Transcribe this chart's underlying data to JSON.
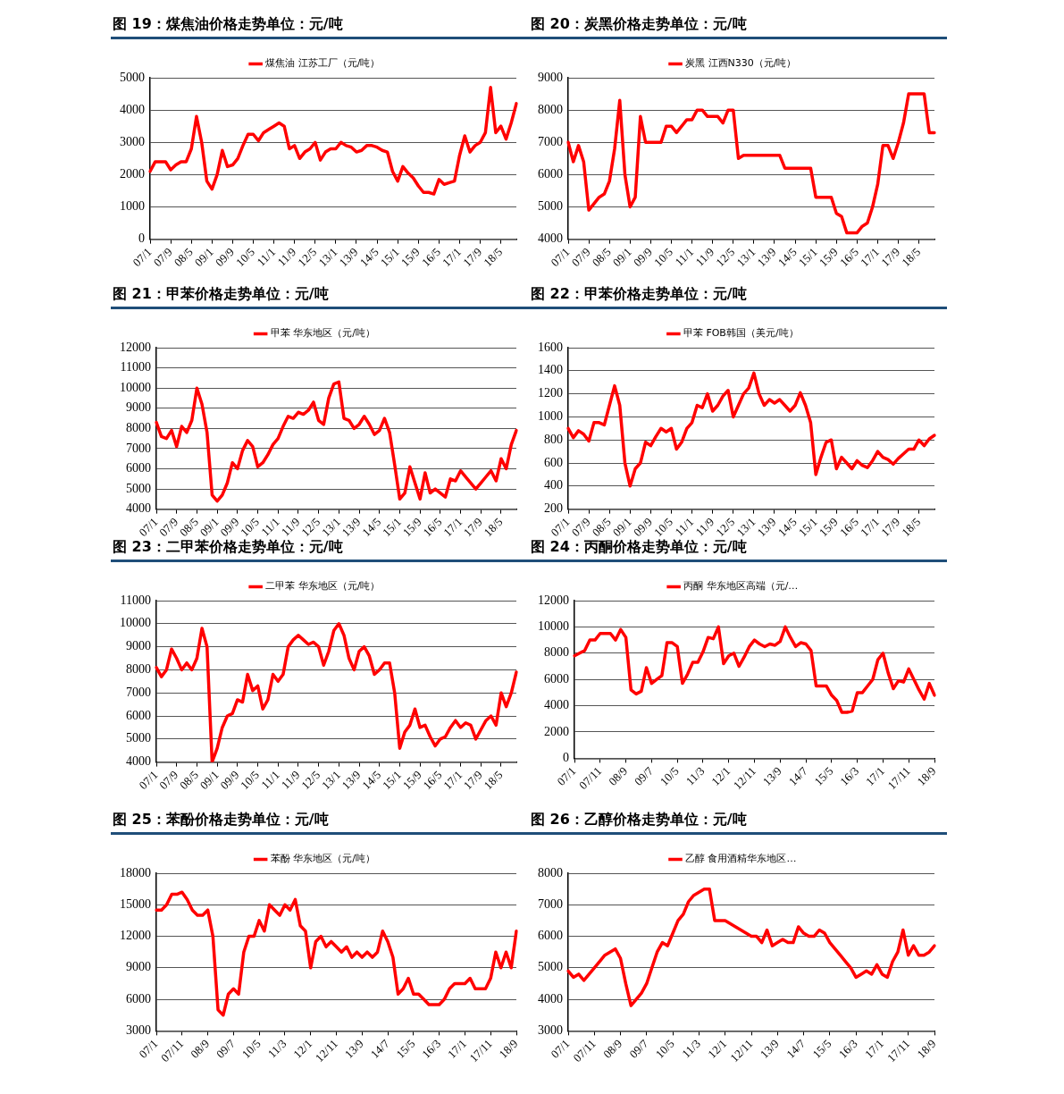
{
  "chart_data": [
    {
      "type": "line",
      "title": "图 19：煤焦油价格走势单位：元/吨",
      "legend": "top",
      "grid": "y",
      "marker": "none",
      "ylim": [
        0,
        5000
      ],
      "yticks": [
        0,
        1000,
        2000,
        3000,
        4000,
        5000
      ],
      "categories": [
        "07/1",
        null,
        null,
        null,
        "07/9",
        null,
        null,
        null,
        "08/5",
        null,
        null,
        null,
        "09/1",
        null,
        null,
        null,
        "09/9",
        null,
        null,
        null,
        "10/5",
        null,
        null,
        null,
        "11/1",
        null,
        null,
        null,
        "11/9",
        null,
        null,
        null,
        "12/5",
        null,
        null,
        null,
        "13/1",
        null,
        null,
        null,
        "13/9",
        null,
        null,
        null,
        "14/5",
        null,
        null,
        null,
        "15/1",
        null,
        null,
        null,
        "15/9",
        null,
        null,
        null,
        "16/5",
        null,
        null,
        null,
        "17/1",
        null,
        null,
        null,
        "17/9",
        null,
        null,
        null,
        "18/5",
        null,
        null,
        null
      ],
      "series": [
        {
          "name": "煤焦油 江苏工厂（元/吨）",
          "color": "#ff0000",
          "values": [
            2100,
            2400,
            2400,
            2400,
            2150,
            2300,
            2400,
            2400,
            2800,
            3800,
            3000,
            1800,
            1550,
            2000,
            2750,
            2250,
            2300,
            2500,
            2900,
            3250,
            3250,
            3050,
            3300,
            3400,
            3500,
            3600,
            3500,
            2800,
            2900,
            2500,
            2700,
            2800,
            3000,
            2450,
            2700,
            2800,
            2800,
            3000,
            2900,
            2850,
            2700,
            2750,
            2900,
            2900,
            2850,
            2750,
            2700,
            2100,
            1800,
            2250,
            2050,
            1900,
            1650,
            1450,
            1450,
            1400,
            1850,
            1700,
            1750,
            1800,
            2600,
            3200,
            2700,
            2900,
            3000,
            3300,
            4700,
            3300,
            3500,
            3100,
            3600,
            4200
          ]
        }
      ]
    },
    {
      "type": "line",
      "title": "图 20：炭黑价格走势单位：元/吨",
      "legend": "top",
      "grid": "y",
      "marker": "none",
      "ylim": [
        4000,
        9000
      ],
      "yticks": [
        4000,
        5000,
        6000,
        7000,
        8000,
        9000
      ],
      "categories": [
        "07/1",
        null,
        null,
        null,
        "07/9",
        null,
        null,
        null,
        "08/5",
        null,
        null,
        null,
        "09/1",
        null,
        null,
        null,
        "09/9",
        null,
        null,
        null,
        "10/5",
        null,
        null,
        null,
        "11/1",
        null,
        null,
        null,
        "11/9",
        null,
        null,
        null,
        "12/5",
        null,
        null,
        null,
        "13/1",
        null,
        null,
        null,
        "13/9",
        null,
        null,
        null,
        "14/5",
        null,
        null,
        null,
        "15/1",
        null,
        null,
        null,
        "15/9",
        null,
        null,
        null,
        "16/5",
        null,
        null,
        null,
        "17/1",
        null,
        null,
        null,
        "17/9",
        null,
        null,
        null,
        "18/5",
        null,
        null,
        null
      ],
      "series": [
        {
          "name": "炭黑 江西N330（元/吨）",
          "color": "#ff0000",
          "values": [
            7000,
            6400,
            6900,
            6400,
            4900,
            5100,
            5300,
            5400,
            5800,
            6800,
            8300,
            6000,
            5000,
            5300,
            7800,
            7000,
            7000,
            7000,
            7000,
            7500,
            7500,
            7300,
            7500,
            7700,
            7700,
            8000,
            8000,
            7800,
            7800,
            7800,
            7600,
            8000,
            8000,
            6500,
            6600,
            6600,
            6600,
            6600,
            6600,
            6600,
            6600,
            6600,
            6200,
            6200,
            6200,
            6200,
            6200,
            6200,
            5300,
            5300,
            5300,
            5300,
            4800,
            4700,
            4200,
            4200,
            4200,
            4400,
            4500,
            5000,
            5700,
            6900,
            6900,
            6500,
            7000,
            7600,
            8500,
            8500,
            8500,
            8500,
            7300,
            7300
          ]
        }
      ]
    },
    {
      "type": "line",
      "title": "图 21：甲苯价格走势单位：元/吨",
      "legend": "top",
      "grid": "y",
      "marker": "none",
      "ylim": [
        4000,
        12000
      ],
      "yticks": [
        4000,
        5000,
        6000,
        7000,
        8000,
        9000,
        10000,
        11000,
        12000
      ],
      "categories": [
        "07/1",
        null,
        null,
        null,
        "07/9",
        null,
        null,
        null,
        "08/5",
        null,
        null,
        null,
        "09/1",
        null,
        null,
        null,
        "09/9",
        null,
        null,
        null,
        "10/5",
        null,
        null,
        null,
        "11/1",
        null,
        null,
        null,
        "11/9",
        null,
        null,
        null,
        "12/5",
        null,
        null,
        null,
        "13/1",
        null,
        null,
        null,
        "13/9",
        null,
        null,
        null,
        "14/5",
        null,
        null,
        null,
        "15/1",
        null,
        null,
        null,
        "15/9",
        null,
        null,
        null,
        "16/5",
        null,
        null,
        null,
        "17/1",
        null,
        null,
        null,
        "17/9",
        null,
        null,
        null,
        "18/5",
        null,
        null,
        null
      ],
      "series": [
        {
          "name": "甲苯 华东地区（元/吨）",
          "color": "#ff0000",
          "values": [
            8300,
            7600,
            7500,
            7900,
            7100,
            8100,
            7800,
            8400,
            10000,
            9200,
            7800,
            4700,
            4400,
            4700,
            5300,
            6300,
            6000,
            6900,
            7400,
            7100,
            6100,
            6300,
            6700,
            7200,
            7500,
            8100,
            8600,
            8500,
            8800,
            8700,
            8900,
            9300,
            8400,
            8200,
            9500,
            10200,
            10300,
            8500,
            8400,
            8000,
            8200,
            8600,
            8200,
            7700,
            7900,
            8500,
            7800,
            6200,
            4500,
            4800,
            6100,
            5300,
            4500,
            5800,
            4800,
            5000,
            4800,
            4600,
            5500,
            5400,
            5900,
            5600,
            5300,
            5000,
            5300,
            5600,
            5900,
            5400,
            6500,
            6000,
            7200,
            7900
          ]
        }
      ]
    },
    {
      "type": "line",
      "title": "图 22：甲苯价格走势单位：元/吨",
      "legend": "top",
      "grid": "y",
      "marker": "none",
      "ylim": [
        200,
        1600
      ],
      "yticks": [
        200,
        400,
        600,
        800,
        1000,
        1200,
        1400,
        1600
      ],
      "categories": [
        "07/1",
        null,
        null,
        null,
        "07/9",
        null,
        null,
        null,
        "08/5",
        null,
        null,
        null,
        "09/1",
        null,
        null,
        null,
        "09/9",
        null,
        null,
        null,
        "10/5",
        null,
        null,
        null,
        "11/1",
        null,
        null,
        null,
        "11/9",
        null,
        null,
        null,
        "12/5",
        null,
        null,
        null,
        "13/1",
        null,
        null,
        null,
        "13/9",
        null,
        null,
        null,
        "14/5",
        null,
        null,
        null,
        "15/1",
        null,
        null,
        null,
        "15/9",
        null,
        null,
        null,
        "16/5",
        null,
        null,
        null,
        "17/1",
        null,
        null,
        null,
        "17/9",
        null,
        null,
        null,
        "18/5",
        null,
        null,
        null
      ],
      "series": [
        {
          "name": "甲苯 FOB韩国（美元/吨）",
          "color": "#ff0000",
          "values": [
            900,
            820,
            880,
            850,
            790,
            950,
            950,
            930,
            1100,
            1270,
            1100,
            600,
            400,
            550,
            600,
            780,
            750,
            830,
            900,
            870,
            900,
            720,
            780,
            900,
            950,
            1100,
            1080,
            1200,
            1050,
            1100,
            1180,
            1230,
            1000,
            1100,
            1200,
            1250,
            1380,
            1200,
            1100,
            1150,
            1120,
            1150,
            1100,
            1050,
            1100,
            1210,
            1100,
            950,
            500,
            650,
            780,
            800,
            550,
            650,
            600,
            550,
            620,
            580,
            560,
            620,
            700,
            650,
            630,
            590,
            640,
            680,
            720,
            720,
            800,
            750,
            810,
            840
          ]
        }
      ]
    },
    {
      "type": "line",
      "title": "图 23：二甲苯价格走势单位：元/吨",
      "legend": "top",
      "grid": "y",
      "marker": "none",
      "ylim": [
        4000,
        11000
      ],
      "yticks": [
        4000,
        5000,
        6000,
        7000,
        8000,
        9000,
        10000,
        11000
      ],
      "categories": [
        "07/1",
        null,
        null,
        null,
        "07/9",
        null,
        null,
        null,
        "08/5",
        null,
        null,
        null,
        "09/1",
        null,
        null,
        null,
        "09/9",
        null,
        null,
        null,
        "10/5",
        null,
        null,
        null,
        "11/1",
        null,
        null,
        null,
        "11/9",
        null,
        null,
        null,
        "12/5",
        null,
        null,
        null,
        "13/1",
        null,
        null,
        null,
        "13/9",
        null,
        null,
        null,
        "14/5",
        null,
        null,
        null,
        "15/1",
        null,
        null,
        null,
        "15/9",
        null,
        null,
        null,
        "16/5",
        null,
        null,
        null,
        "17/1",
        null,
        null,
        null,
        "17/9",
        null,
        null,
        null,
        "18/5",
        null,
        null,
        null
      ],
      "series": [
        {
          "name": "二甲苯 华东地区（元/吨）",
          "color": "#ff0000",
          "values": [
            8100,
            7700,
            8000,
            8900,
            8500,
            8000,
            8300,
            8000,
            8500,
            9800,
            9000,
            4000,
            4600,
            5500,
            6000,
            6100,
            6700,
            6600,
            7800,
            7100,
            7300,
            6300,
            6700,
            7800,
            7500,
            7800,
            9000,
            9300,
            9500,
            9300,
            9100,
            9200,
            9000,
            8200,
            8800,
            9700,
            10000,
            9500,
            8500,
            8000,
            8800,
            9000,
            8600,
            7800,
            8000,
            8300,
            8300,
            7000,
            4600,
            5300,
            5600,
            6300,
            5500,
            5600,
            5100,
            4700,
            5000,
            5100,
            5500,
            5800,
            5500,
            5700,
            5600,
            5000,
            5400,
            5800,
            6000,
            5600,
            7000,
            6400,
            7000,
            7900
          ]
        }
      ]
    },
    {
      "type": "line",
      "title": "图 24：丙酮价格走势单位：元/吨",
      "legend": "top",
      "grid": "y",
      "marker": "none",
      "ylim": [
        0,
        12000
      ],
      "yticks": [
        0,
        2000,
        4000,
        6000,
        8000,
        10000,
        12000
      ],
      "categories": [
        "07/1",
        null,
        null,
        null,
        null,
        "07/11",
        null,
        null,
        null,
        null,
        "08/9",
        null,
        null,
        null,
        null,
        "09/7",
        null,
        null,
        null,
        null,
        "10/5",
        null,
        null,
        null,
        null,
        "11/3",
        null,
        null,
        null,
        null,
        "12/1",
        null,
        null,
        null,
        null,
        "12/11",
        null,
        null,
        null,
        null,
        "13/9",
        null,
        null,
        null,
        null,
        "14/7",
        null,
        null,
        null,
        null,
        "15/5",
        null,
        null,
        null,
        null,
        "16/3",
        null,
        null,
        null,
        null,
        "17/1",
        null,
        null,
        null,
        null,
        "17/11",
        null,
        null,
        null,
        null,
        "18/9"
      ],
      "series": [
        {
          "name": "丙酮 华东地区高端（元/…",
          "color": "#ff0000",
          "values": [
            7800,
            8000,
            8200,
            9000,
            9000,
            9500,
            9500,
            9500,
            9000,
            9800,
            9200,
            5200,
            4900,
            5100,
            6900,
            5700,
            6000,
            6300,
            8800,
            8800,
            8500,
            5700,
            6400,
            7300,
            7300,
            8100,
            9200,
            9100,
            10000,
            7200,
            7800,
            8000,
            7000,
            7700,
            8500,
            9000,
            8700,
            8500,
            8700,
            8600,
            8900,
            10000,
            9200,
            8500,
            8800,
            8700,
            8200,
            5500,
            5500,
            5500,
            4800,
            4400,
            3500,
            3500,
            3600,
            5000,
            5000,
            5500,
            6000,
            7500,
            8000,
            6500,
            5300,
            5900,
            5800,
            6800,
            6000,
            5200,
            4500,
            5700,
            4800
          ]
        }
      ]
    },
    {
      "type": "line",
      "title": "图 25：苯酚价格走势单位：元/吨",
      "legend": "top",
      "grid": "y",
      "marker": "none",
      "ylim": [
        3000,
        18000
      ],
      "yticks": [
        3000,
        6000,
        9000,
        12000,
        15000,
        18000
      ],
      "categories": [
        "07/1",
        null,
        null,
        null,
        null,
        "07/11",
        null,
        null,
        null,
        null,
        "08/9",
        null,
        null,
        null,
        null,
        "09/7",
        null,
        null,
        null,
        null,
        "10/5",
        null,
        null,
        null,
        null,
        "11/3",
        null,
        null,
        null,
        null,
        "12/1",
        null,
        null,
        null,
        null,
        "12/11",
        null,
        null,
        null,
        null,
        "13/9",
        null,
        null,
        null,
        null,
        "14/7",
        null,
        null,
        null,
        null,
        "15/5",
        null,
        null,
        null,
        null,
        "16/3",
        null,
        null,
        null,
        null,
        "17/1",
        null,
        null,
        null,
        null,
        "17/11",
        null,
        null,
        null,
        null,
        "18/9"
      ],
      "series": [
        {
          "name": "苯酚 华东地区（元/吨）",
          "color": "#ff0000",
          "values": [
            14500,
            14500,
            15000,
            16000,
            16000,
            16200,
            15500,
            14500,
            14000,
            14000,
            14500,
            12000,
            5000,
            4500,
            6500,
            7000,
            6500,
            10500,
            12000,
            12000,
            13500,
            12500,
            15000,
            14500,
            14000,
            15000,
            14500,
            15500,
            13000,
            12500,
            9000,
            11500,
            12000,
            11000,
            11500,
            11000,
            10500,
            11000,
            10000,
            10500,
            10000,
            10500,
            10000,
            10500,
            12500,
            11500,
            10000,
            6500,
            7000,
            8000,
            6500,
            6500,
            6000,
            5500,
            5500,
            5500,
            6000,
            7000,
            7500,
            7500,
            7500,
            8000,
            7000,
            7000,
            7000,
            8000,
            10500,
            9000,
            10500,
            9000,
            12500
          ]
        }
      ]
    },
    {
      "type": "line",
      "title": "图 26：乙醇价格走势单位：元/吨",
      "legend": "top",
      "grid": "y",
      "marker": "none",
      "ylim": [
        3000,
        8000
      ],
      "yticks": [
        3000,
        4000,
        5000,
        6000,
        7000,
        8000
      ],
      "categories": [
        "07/1",
        null,
        null,
        null,
        null,
        "07/11",
        null,
        null,
        null,
        null,
        "08/9",
        null,
        null,
        null,
        null,
        "09/7",
        null,
        null,
        null,
        null,
        "10/5",
        null,
        null,
        null,
        null,
        "11/3",
        null,
        null,
        null,
        null,
        "12/1",
        null,
        null,
        null,
        null,
        "12/11",
        null,
        null,
        null,
        null,
        "13/9",
        null,
        null,
        null,
        null,
        "14/7",
        null,
        null,
        null,
        null,
        "15/5",
        null,
        null,
        null,
        null,
        "16/3",
        null,
        null,
        null,
        null,
        "17/1",
        null,
        null,
        null,
        null,
        "17/11",
        null,
        null,
        null,
        null,
        "18/9"
      ],
      "series": [
        {
          "name": "乙醇 食用酒精华东地区…",
          "color": "#ff0000",
          "values": [
            4900,
            4700,
            4800,
            4600,
            4800,
            5000,
            5200,
            5400,
            5500,
            5600,
            5300,
            4500,
            3800,
            4000,
            4200,
            4500,
            5000,
            5500,
            5800,
            5700,
            6100,
            6500,
            6700,
            7100,
            7300,
            7400,
            7500,
            7500,
            6500,
            6500,
            6500,
            6400,
            6300,
            6200,
            6100,
            6000,
            6000,
            5800,
            6200,
            5700,
            5800,
            5900,
            5800,
            5800,
            6300,
            6100,
            6000,
            6000,
            6200,
            6100,
            5800,
            5600,
            5400,
            5200,
            5000,
            4700,
            4800,
            4900,
            4800,
            5100,
            4800,
            4700,
            5200,
            5500,
            6200,
            5400,
            5700,
            5400,
            5400,
            5500,
            5700
          ]
        }
      ]
    }
  ]
}
